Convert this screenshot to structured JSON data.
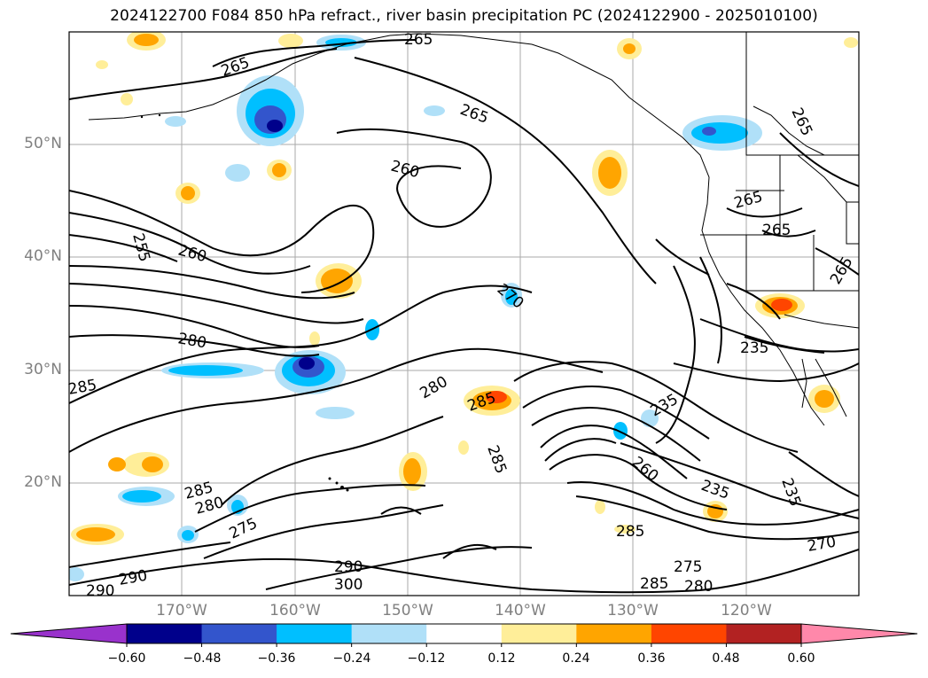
{
  "title": "2024122700 F084 850 hPa refract., river basin precipitation PC (2024122900 - 2025010100)",
  "map": {
    "lat_labels": [
      "50°N",
      "40°N",
      "30°N",
      "20°N"
    ],
    "lon_labels": [
      "170°W",
      "160°W",
      "150°W",
      "140°W",
      "130°W",
      "120°W"
    ],
    "contour_labels": [
      "265",
      "265",
      "265",
      "260",
      "255",
      "260",
      "270",
      "280",
      "285",
      "280",
      "285",
      "235",
      "285",
      "260",
      "235",
      "265",
      "265",
      "265",
      "235",
      "285",
      "280",
      "275",
      "290",
      "290",
      "300",
      "290",
      "275",
      "285",
      "285",
      "280",
      "235",
      "270",
      "265"
    ]
  },
  "colorbar": {
    "colors": [
      "#9932cc",
      "#00008b",
      "#3355cc",
      "#00bfff",
      "#b0e0f8",
      "#ffffff",
      "#ffee99",
      "#ffa500",
      "#ff4500",
      "#b22222",
      "#ff88aa"
    ],
    "ticks": [
      "−0.60",
      "−0.48",
      "−0.36",
      "−0.24",
      "−0.12",
      "0.12",
      "0.24",
      "0.36",
      "0.48",
      "0.60"
    ]
  }
}
